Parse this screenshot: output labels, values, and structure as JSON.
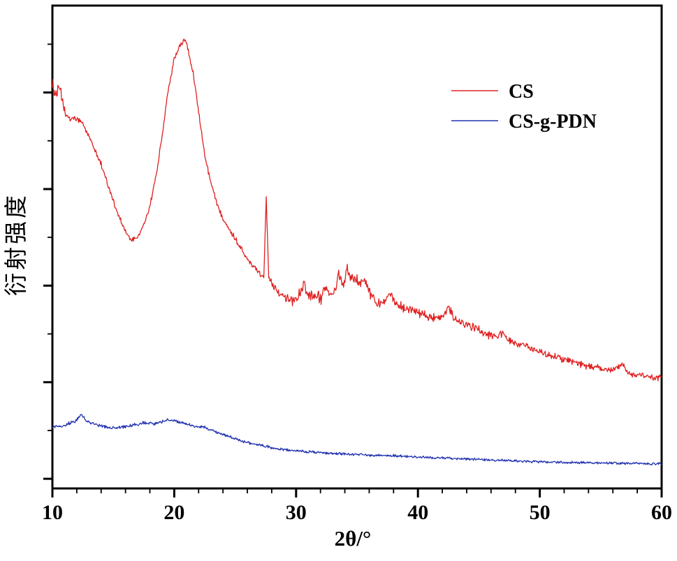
{
  "figure": {
    "background_color": "#ffffff",
    "frame_color": "#000000"
  },
  "chart_data": {
    "type": "line",
    "title": "",
    "xlabel": "2θ/°",
    "ylabel": "衍射强度",
    "x_range": [
      10,
      60
    ],
    "y_range": [
      0,
      100
    ],
    "x_ticks": [
      10,
      20,
      30,
      40,
      50,
      60
    ],
    "y_ticks_labeled": false,
    "grid": false,
    "legend_position": "upper-right-inside, no border",
    "notable_features": {
      "CS": "Broad strong peak near 2θ≈20.8°, shoulder near 10–12°, sharp narrow spike at ≈27.6°, cluster of small spiky peaks 30–38°, slowly decaying noisy tail to 60°",
      "CS-g-PDN": "Nearly flat low-intensity trace, small bump ≈12.4°, broad weak hump ≈20°, slow decay to 60°"
    },
    "series": [
      {
        "name": "CS",
        "color": "#e02020",
        "anchors": [
          [
            10,
            83.5
          ],
          [
            10.3,
            81.5
          ],
          [
            10.6,
            83
          ],
          [
            11,
            78
          ],
          [
            11.5,
            76.3
          ],
          [
            12,
            76.6
          ],
          [
            12.5,
            75.4
          ],
          [
            13,
            73
          ],
          [
            13.5,
            70
          ],
          [
            14,
            67.2
          ],
          [
            14.5,
            63.3
          ],
          [
            15,
            59.5
          ],
          [
            15.5,
            56.1
          ],
          [
            16,
            53
          ],
          [
            16.5,
            51.4
          ],
          [
            17,
            52
          ],
          [
            17.5,
            54.6
          ],
          [
            18,
            58.4
          ],
          [
            18.5,
            64.7
          ],
          [
            19,
            73
          ],
          [
            19.5,
            82.4
          ],
          [
            20,
            88.9
          ],
          [
            20.4,
            91.3
          ],
          [
            20.8,
            92.8
          ],
          [
            21,
            92.4
          ],
          [
            21.2,
            90.3
          ],
          [
            21.6,
            85.3
          ],
          [
            22,
            78
          ],
          [
            22.5,
            69.1
          ],
          [
            23,
            63.3
          ],
          [
            23.5,
            59
          ],
          [
            24,
            56.1
          ],
          [
            24.5,
            53.8
          ],
          [
            25,
            51.7
          ],
          [
            25.5,
            49.7
          ],
          [
            26,
            47.7
          ],
          [
            26.5,
            46
          ],
          [
            27,
            44.5
          ],
          [
            27.35,
            43.6
          ],
          [
            27.55,
            61
          ],
          [
            27.75,
            44.1
          ],
          [
            28,
            42.6
          ],
          [
            28.5,
            40.8
          ],
          [
            29,
            39.7
          ],
          [
            29.5,
            39.3
          ],
          [
            30,
            38.7
          ],
          [
            30.6,
            42.2
          ],
          [
            31,
            39.3
          ],
          [
            31.5,
            40.2
          ],
          [
            32,
            39.3
          ],
          [
            32.5,
            41.2
          ],
          [
            33,
            39.7
          ],
          [
            33.5,
            44.1
          ],
          [
            33.8,
            42.2
          ],
          [
            34.2,
            45.1
          ],
          [
            34.6,
            43.1
          ],
          [
            35,
            43.6
          ],
          [
            35.4,
            42.2
          ],
          [
            35.7,
            43.4
          ],
          [
            36,
            40.5
          ],
          [
            36.5,
            38.7
          ],
          [
            37,
            38.3
          ],
          [
            37.7,
            40.8
          ],
          [
            38.2,
            37.9
          ],
          [
            39,
            37.3
          ],
          [
            40,
            36.4
          ],
          [
            41,
            35.4
          ],
          [
            42,
            35
          ],
          [
            42.5,
            37.6
          ],
          [
            43,
            35
          ],
          [
            44,
            34
          ],
          [
            45,
            32.9
          ],
          [
            46,
            31.5
          ],
          [
            47,
            32.1
          ],
          [
            47.5,
            30.6
          ],
          [
            48,
            30.1
          ],
          [
            49,
            29.2
          ],
          [
            50,
            28.2
          ],
          [
            51,
            27.5
          ],
          [
            52,
            26.7
          ],
          [
            53,
            26
          ],
          [
            54,
            25.3
          ],
          [
            55,
            24.9
          ],
          [
            56,
            24.3
          ],
          [
            56.8,
            25.7
          ],
          [
            57.3,
            23.8
          ],
          [
            58,
            23.6
          ],
          [
            59,
            23.1
          ],
          [
            60,
            22.8
          ]
        ],
        "noise": [
          [
            10,
            1.8
          ],
          [
            11.2,
            1.0
          ],
          [
            13,
            0.7
          ],
          [
            19,
            0.6
          ],
          [
            22,
            0.7
          ],
          [
            27,
            0.7
          ],
          [
            29,
            1.0
          ],
          [
            30,
            1.6
          ],
          [
            36,
            1.6
          ],
          [
            38,
            1.2
          ],
          [
            48,
            0.9
          ],
          [
            60,
            0.8
          ]
        ]
      },
      {
        "name": "CS-g-PDN",
        "color": "#2030b0",
        "anchors": [
          [
            10,
            12.7
          ],
          [
            11,
            13
          ],
          [
            12,
            14.2
          ],
          [
            12.4,
            15.3
          ],
          [
            12.8,
            13.9
          ],
          [
            13.5,
            13.3
          ],
          [
            14.5,
            12.7
          ],
          [
            15.5,
            12.6
          ],
          [
            16.5,
            13
          ],
          [
            17.5,
            13.6
          ],
          [
            18.5,
            13.4
          ],
          [
            19.5,
            14.2
          ],
          [
            20,
            14
          ],
          [
            20.5,
            13.7
          ],
          [
            21.5,
            13
          ],
          [
            22.5,
            12.6
          ],
          [
            23.5,
            11.6
          ],
          [
            24.5,
            10.7
          ],
          [
            25.5,
            9.8
          ],
          [
            27,
            9
          ],
          [
            28.5,
            8.2
          ],
          [
            30,
            7.8
          ],
          [
            32,
            7.4
          ],
          [
            34,
            7.1
          ],
          [
            36,
            6.9
          ],
          [
            38,
            6.8
          ],
          [
            40,
            6.5
          ],
          [
            43,
            6.2
          ],
          [
            46,
            5.9
          ],
          [
            50,
            5.5
          ],
          [
            54,
            5.3
          ],
          [
            57,
            5.2
          ],
          [
            60,
            5.1
          ]
        ],
        "noise": [
          [
            10,
            0.45
          ],
          [
            25,
            0.35
          ],
          [
            40,
            0.3
          ],
          [
            60,
            0.3
          ]
        ]
      }
    ]
  }
}
